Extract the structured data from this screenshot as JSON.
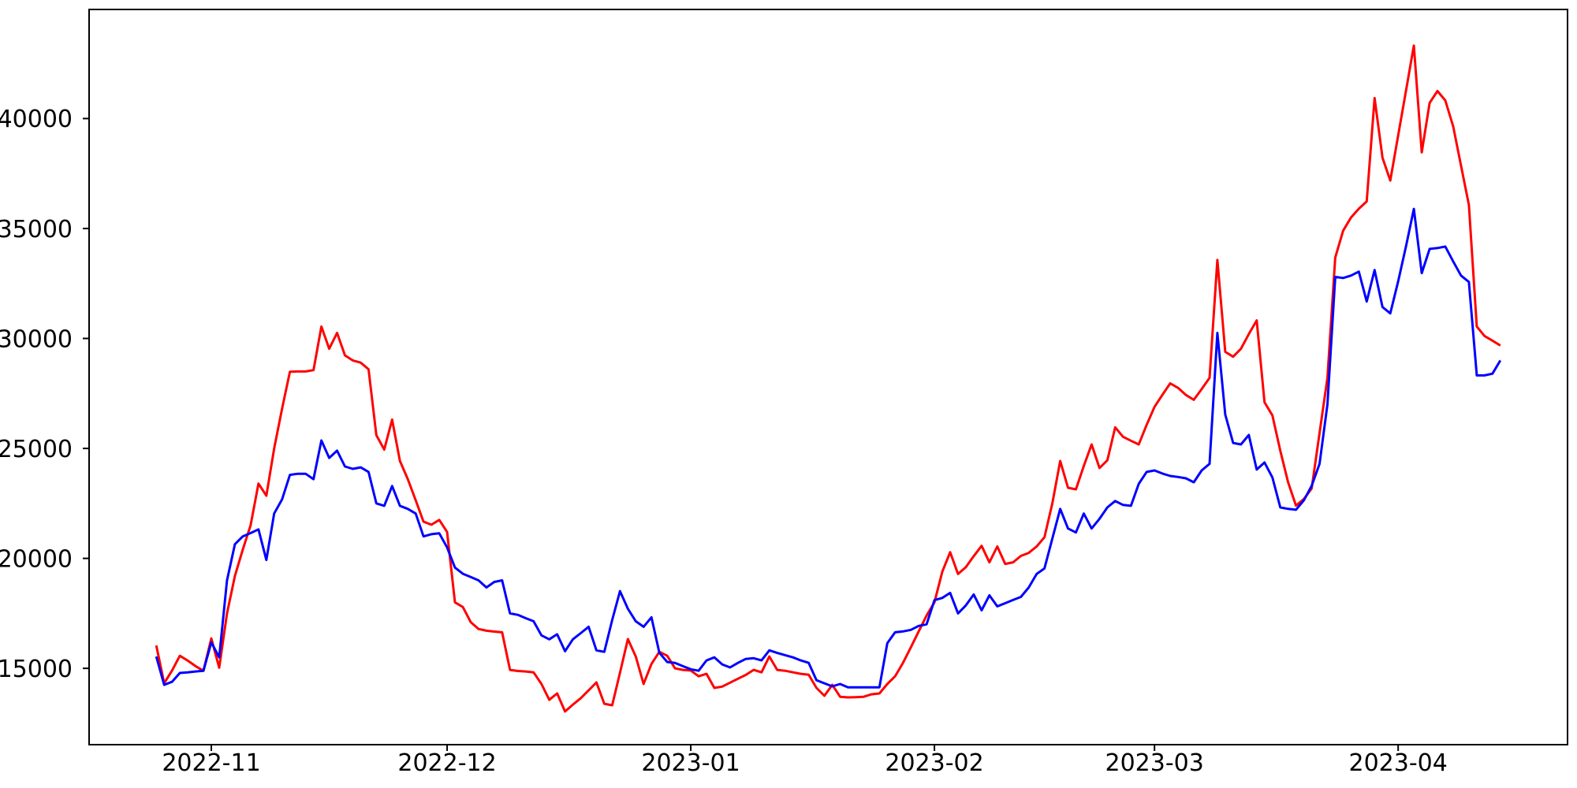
{
  "figure": {
    "background": "#ffffff",
    "spine_color": "#000000",
    "tick_color": "#000000",
    "label_color": "#000000"
  },
  "chart_data": {
    "type": "line",
    "title": "",
    "xlabel": "",
    "ylabel": "",
    "grid": false,
    "legend": false,
    "start_date": "2022-10-25",
    "end_date": "2023-04-14",
    "frequency": "daily",
    "ylim": [
      11530,
      44960
    ],
    "x_margin": 0.05,
    "y_ticks": [
      15000,
      20000,
      25000,
      30000,
      35000,
      40000
    ],
    "x_ticks": [
      {
        "label": "2022-11",
        "index": 7
      },
      {
        "label": "2022-12",
        "index": 37
      },
      {
        "label": "2023-01",
        "index": 68
      },
      {
        "label": "2023-02",
        "index": 99
      },
      {
        "label": "2023-03",
        "index": 127
      },
      {
        "label": "2023-04",
        "index": 158
      }
    ],
    "series": [
      {
        "name": "red-series",
        "color": "#ff0000",
        "values": [
          16040,
          14320,
          14900,
          15570,
          15350,
          15100,
          14890,
          16360,
          15030,
          17500,
          19200,
          20400,
          21500,
          23400,
          22850,
          25000,
          26800,
          28490,
          28500,
          28500,
          28560,
          30540,
          29530,
          30250,
          29230,
          29000,
          28900,
          28600,
          25600,
          24950,
          26310,
          24430,
          23600,
          22640,
          21670,
          21530,
          21750,
          21200,
          18000,
          17790,
          17100,
          16790,
          16710,
          16670,
          16640,
          14930,
          14880,
          14860,
          14820,
          14290,
          13570,
          13860,
          13040,
          13350,
          13640,
          14000,
          14360,
          13390,
          13320,
          14800,
          16330,
          15540,
          14290,
          15200,
          15750,
          15570,
          15000,
          14930,
          14900,
          14640,
          14750,
          14110,
          14170,
          14350,
          14530,
          14700,
          14930,
          14820,
          15540,
          14930,
          14890,
          14820,
          14750,
          14710,
          14110,
          13750,
          14250,
          13710,
          13680,
          13690,
          13710,
          13820,
          13860,
          14290,
          14640,
          15250,
          15960,
          16680,
          17400,
          18000,
          19390,
          20280,
          19290,
          19600,
          20100,
          20570,
          19820,
          20540,
          19750,
          19820,
          20110,
          20250,
          20540,
          20960,
          22500,
          24430,
          23210,
          23140,
          24200,
          25180,
          24110,
          24460,
          25960,
          25530,
          25350,
          25180,
          26070,
          26890,
          27430,
          27960,
          27750,
          27430,
          27210,
          27700,
          28210,
          33570,
          29390,
          29170,
          29530,
          30200,
          30820,
          27100,
          26500,
          24900,
          23460,
          22400,
          22700,
          23180,
          25700,
          28210,
          33680,
          34900,
          35500,
          35900,
          36230,
          40930,
          38220,
          37180,
          39230,
          41280,
          43320,
          38460,
          40710,
          41250,
          40820,
          39640,
          37860,
          36070,
          30540,
          30110,
          29900,
          29680
        ]
      },
      {
        "name": "blue-series",
        "color": "#0000ff",
        "values": [
          15540,
          14250,
          14390,
          14790,
          14820,
          14860,
          14890,
          16180,
          15500,
          19000,
          20640,
          21000,
          21150,
          21320,
          19930,
          22040,
          22680,
          23800,
          23850,
          23850,
          23600,
          25360,
          24570,
          24900,
          24180,
          24070,
          24140,
          23930,
          22500,
          22390,
          23290,
          22390,
          22250,
          22040,
          21000,
          21100,
          21140,
          20500,
          19580,
          19300,
          19150,
          19000,
          18680,
          18930,
          19000,
          17500,
          17430,
          17280,
          17140,
          16500,
          16320,
          16550,
          15780,
          16320,
          16600,
          16890,
          15820,
          15750,
          17200,
          18510,
          17710,
          17140,
          16890,
          17320,
          15710,
          15290,
          15250,
          15100,
          14960,
          14890,
          15360,
          15500,
          15180,
          15040,
          15250,
          15430,
          15460,
          15360,
          15820,
          15700,
          15600,
          15500,
          15360,
          15250,
          14460,
          14320,
          14180,
          14290,
          14140,
          14140,
          14140,
          14140,
          14140,
          16140,
          16640,
          16680,
          16750,
          16930,
          17000,
          18100,
          18200,
          18430,
          17500,
          17860,
          18360,
          17640,
          18320,
          17820,
          17960,
          18110,
          18250,
          18680,
          19290,
          19540,
          20900,
          22250,
          21360,
          21180,
          22040,
          21360,
          21800,
          22320,
          22610,
          22430,
          22390,
          23390,
          23930,
          24000,
          23860,
          23750,
          23700,
          23640,
          23460,
          24000,
          24300,
          30250,
          26540,
          25250,
          25180,
          25610,
          24040,
          24360,
          23680,
          22320,
          22250,
          22210,
          22640,
          23300,
          24300,
          27000,
          32800,
          32750,
          32860,
          33040,
          31680,
          33110,
          31430,
          31140,
          32600,
          34200,
          35890,
          32970,
          34070,
          34110,
          34180,
          33500,
          32860,
          32570,
          28320,
          28320,
          28400,
          29000
        ]
      }
    ]
  }
}
